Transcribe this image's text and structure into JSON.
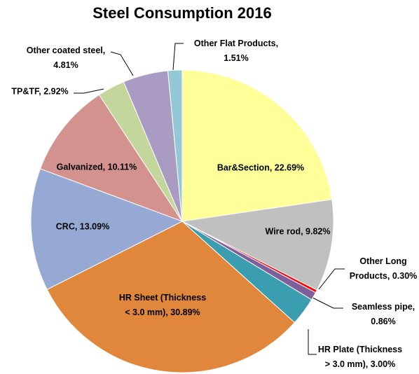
{
  "chart_data": {
    "type": "pie",
    "title": "Steel Consumption 2016",
    "values": [
      22.69,
      9.82,
      0.3,
      0.86,
      3.0,
      30.89,
      13.09,
      10.11,
      2.92,
      4.81,
      1.51
    ],
    "labels": [
      [
        "Bar&Section, 22.69%"
      ],
      [
        "Wire rod, 9.82%"
      ],
      [
        "Other Long",
        "Products, 0.30%"
      ],
      [
        "Seamless pipe,",
        "0.86%"
      ],
      [
        "HR Plate (Thickness",
        "> 3.0  mm), 3.00%"
      ],
      [
        "HR Sheet (Thickness",
        "< 3.0 mm), 30.89%"
      ],
      [
        "CRC, 13.09%"
      ],
      [
        "Galvanized, 10.11%"
      ],
      [
        "TP&TF, 2.92%"
      ],
      [
        "Other coated steel,",
        "4.81%"
      ],
      [
        "Other Flat Products,",
        "1.51%"
      ]
    ],
    "colors": [
      "#ffff99",
      "#c0c0c0",
      "#ff0000",
      "#7e5f9c",
      "#3a9db0",
      "#e0873c",
      "#95a9d4",
      "#d4928f",
      "#c3d69b",
      "#a99bc2",
      "#93c8d8"
    ]
  }
}
